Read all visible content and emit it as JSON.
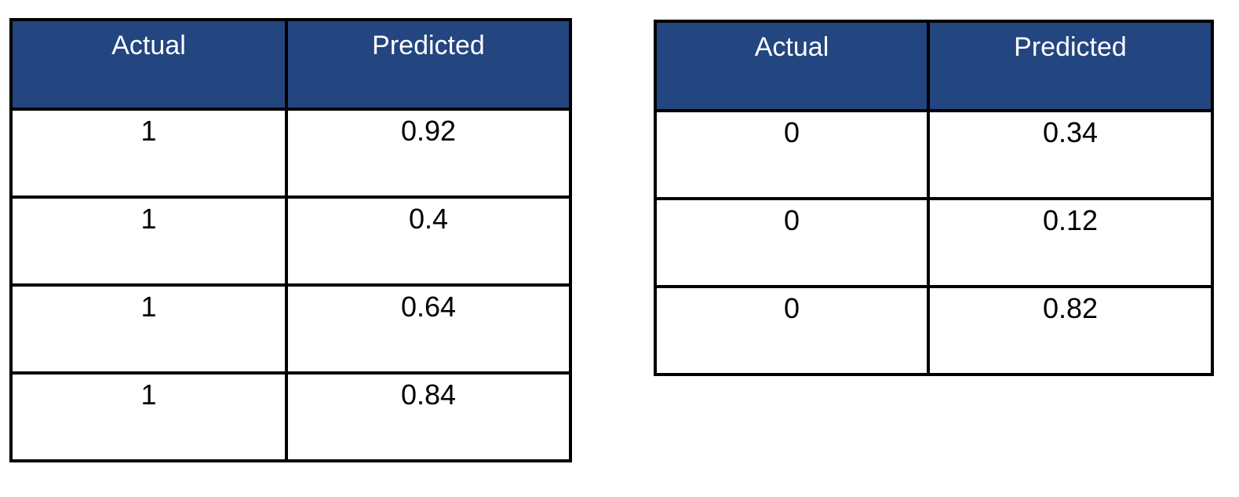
{
  "page": {
    "background": "#ffffff"
  },
  "accent_color": "#234580",
  "border_color": "#000000",
  "tables": [
    {
      "name": "actual-vs-predicted-positives",
      "headers": [
        "Actual",
        "Predicted"
      ],
      "rows": [
        [
          "1",
          "0.92"
        ],
        [
          "1",
          "0.4"
        ],
        [
          "1",
          "0.64"
        ],
        [
          "1",
          "0.84"
        ]
      ]
    },
    {
      "name": "actual-vs-predicted-negatives",
      "headers": [
        "Actual",
        "Predicted"
      ],
      "rows": [
        [
          "0",
          "0.34"
        ],
        [
          "0",
          "0.12"
        ],
        [
          "0",
          "0.82"
        ]
      ]
    }
  ],
  "chart_data": [
    {
      "type": "table",
      "columns": [
        "Actual",
        "Predicted"
      ],
      "rows": [
        [
          1,
          0.92
        ],
        [
          1,
          0.4
        ],
        [
          1,
          0.64
        ],
        [
          1,
          0.84
        ]
      ],
      "header_bg": "#234580",
      "header_text_color": "#ffffff",
      "body_text_color": "#000000",
      "grid": "on"
    },
    {
      "type": "table",
      "columns": [
        "Actual",
        "Predicted"
      ],
      "rows": [
        [
          0,
          0.34
        ],
        [
          0,
          0.12
        ],
        [
          0,
          0.82
        ]
      ],
      "header_bg": "#234580",
      "header_text_color": "#ffffff",
      "body_text_color": "#000000",
      "grid": "on"
    }
  ]
}
